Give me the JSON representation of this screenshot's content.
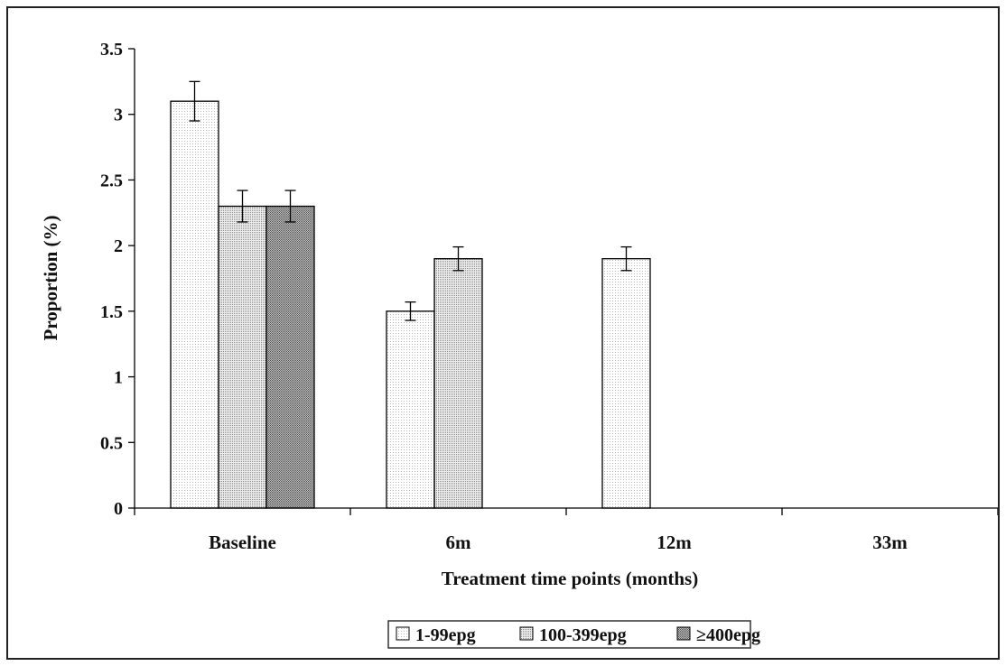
{
  "chart_data": {
    "type": "bar",
    "categories": [
      "Baseline",
      "6m",
      "12m",
      "33m"
    ],
    "xlabel": "Treatment time points (months)",
    "ylabel": "Proportion (%)",
    "ylim": [
      0,
      3.5
    ],
    "yticks": [
      "0",
      "0.5",
      "1",
      "1.5",
      "2",
      "2.5",
      "3",
      "3.5"
    ],
    "grid": false,
    "legend_position": "bottom",
    "series": [
      {
        "name": "1-99epg",
        "values": [
          3.1,
          1.5,
          1.9,
          0
        ],
        "errors": [
          0.15,
          0.07,
          0.09,
          0
        ],
        "pattern": "light",
        "color": "#efefef"
      },
      {
        "name": "100-399epg",
        "values": [
          2.3,
          1.9,
          0,
          0
        ],
        "errors": [
          0.12,
          0.09,
          0,
          0
        ],
        "pattern": "medium",
        "color": "#cfcfcf"
      },
      {
        "name": "≥400epg",
        "values": [
          2.3,
          0,
          0,
          0
        ],
        "errors": [
          0.12,
          0,
          0,
          0
        ],
        "pattern": "dark",
        "color": "#9a9a9a"
      }
    ]
  }
}
